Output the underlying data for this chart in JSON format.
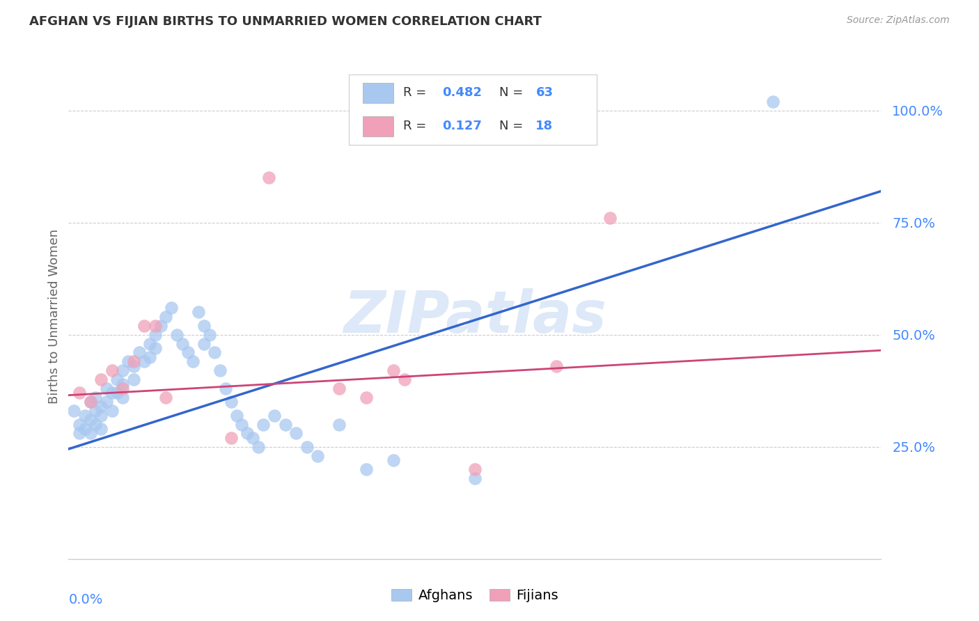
{
  "title": "AFGHAN VS FIJIAN BIRTHS TO UNMARRIED WOMEN CORRELATION CHART",
  "source": "Source: ZipAtlas.com",
  "ylabel": "Births to Unmarried Women",
  "xlim": [
    0.0,
    0.15
  ],
  "ylim": [
    0.0,
    1.08
  ],
  "yticks": [
    0.25,
    0.5,
    0.75,
    1.0
  ],
  "ytick_labels": [
    "25.0%",
    "50.0%",
    "75.0%",
    "100.0%"
  ],
  "afghan_color": "#a8c8f0",
  "fijian_color": "#f0a0b8",
  "line_afghan_color": "#3366cc",
  "line_fijian_color": "#cc4477",
  "watermark_color": "#dde8f8",
  "background_color": "#ffffff",
  "grid_color": "#cccccc",
  "tick_color": "#4488ff",
  "afghan_line_y0": 0.245,
  "afghan_line_y1": 0.82,
  "fijian_line_y0": 0.365,
  "fijian_line_y1": 0.465,
  "afghan_x": [
    0.001,
    0.002,
    0.002,
    0.003,
    0.003,
    0.004,
    0.004,
    0.004,
    0.005,
    0.005,
    0.005,
    0.006,
    0.006,
    0.006,
    0.007,
    0.007,
    0.008,
    0.008,
    0.009,
    0.009,
    0.01,
    0.01,
    0.01,
    0.011,
    0.012,
    0.012,
    0.013,
    0.014,
    0.015,
    0.015,
    0.016,
    0.016,
    0.017,
    0.018,
    0.019,
    0.02,
    0.021,
    0.022,
    0.023,
    0.024,
    0.025,
    0.025,
    0.026,
    0.027,
    0.028,
    0.029,
    0.03,
    0.031,
    0.032,
    0.033,
    0.034,
    0.035,
    0.036,
    0.038,
    0.04,
    0.042,
    0.044,
    0.046,
    0.05,
    0.055,
    0.06,
    0.075,
    0.13
  ],
  "afghan_y": [
    0.33,
    0.3,
    0.28,
    0.32,
    0.29,
    0.35,
    0.31,
    0.28,
    0.36,
    0.33,
    0.3,
    0.34,
    0.32,
    0.29,
    0.38,
    0.35,
    0.37,
    0.33,
    0.4,
    0.37,
    0.42,
    0.39,
    0.36,
    0.44,
    0.43,
    0.4,
    0.46,
    0.44,
    0.48,
    0.45,
    0.5,
    0.47,
    0.52,
    0.54,
    0.56,
    0.5,
    0.48,
    0.46,
    0.44,
    0.55,
    0.52,
    0.48,
    0.5,
    0.46,
    0.42,
    0.38,
    0.35,
    0.32,
    0.3,
    0.28,
    0.27,
    0.25,
    0.3,
    0.32,
    0.3,
    0.28,
    0.25,
    0.23,
    0.3,
    0.2,
    0.22,
    0.18,
    1.02
  ],
  "fijian_x": [
    0.002,
    0.004,
    0.006,
    0.008,
    0.01,
    0.012,
    0.014,
    0.016,
    0.018,
    0.03,
    0.037,
    0.05,
    0.055,
    0.06,
    0.062,
    0.075,
    0.09,
    0.1
  ],
  "fijian_y": [
    0.37,
    0.35,
    0.4,
    0.42,
    0.38,
    0.44,
    0.52,
    0.52,
    0.36,
    0.27,
    0.85,
    0.38,
    0.36,
    0.42,
    0.4,
    0.2,
    0.43,
    0.76
  ]
}
